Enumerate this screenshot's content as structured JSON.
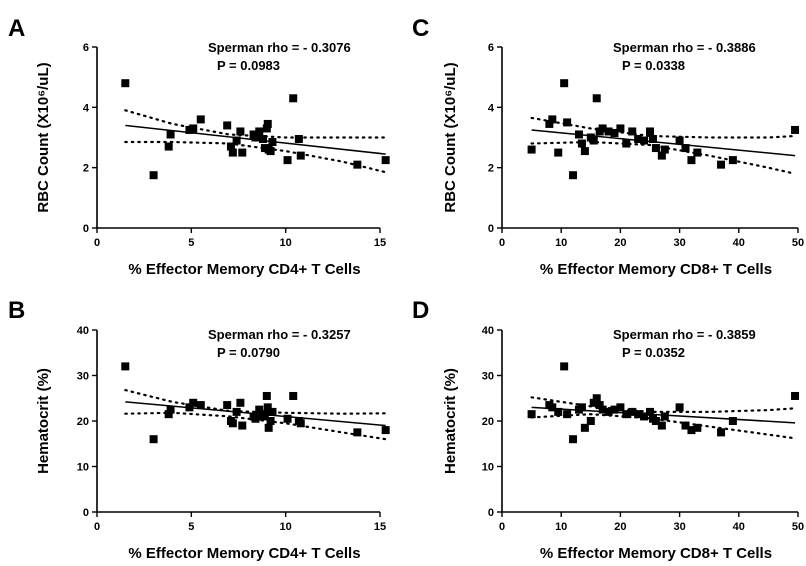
{
  "chart_data": [
    {
      "panel": "A",
      "type": "scatter",
      "xlabel": "% Effector Memory CD4+ T Cells",
      "ylabel": "RBC Count (X10⁶/uL)",
      "xlim": [
        0,
        15
      ],
      "ylim": [
        0,
        6
      ],
      "xticks": [
        0,
        5,
        10,
        15
      ],
      "yticks": [
        0,
        2,
        4,
        6
      ],
      "stats": [
        "Sperman rho = - 0.3076",
        "P = 0.0983"
      ],
      "points": [
        [
          1.5,
          4.8
        ],
        [
          3.0,
          1.75
        ],
        [
          3.8,
          2.7
        ],
        [
          3.9,
          3.1
        ],
        [
          4.9,
          3.25
        ],
        [
          5.1,
          3.3
        ],
        [
          5.5,
          3.6
        ],
        [
          6.9,
          3.4
        ],
        [
          7.1,
          2.7
        ],
        [
          7.2,
          2.5
        ],
        [
          7.4,
          2.9
        ],
        [
          7.6,
          3.2
        ],
        [
          7.7,
          2.5
        ],
        [
          8.3,
          3.1
        ],
        [
          8.4,
          3.0
        ],
        [
          8.6,
          3.2
        ],
        [
          8.8,
          2.95
        ],
        [
          8.9,
          2.65
        ],
        [
          9.0,
          3.3
        ],
        [
          9.05,
          3.45
        ],
        [
          9.1,
          2.6
        ],
        [
          9.2,
          2.55
        ],
        [
          9.3,
          2.85
        ],
        [
          10.1,
          2.25
        ],
        [
          10.4,
          4.3
        ],
        [
          10.7,
          2.95
        ],
        [
          10.8,
          2.4
        ],
        [
          13.8,
          2.1
        ],
        [
          15.3,
          2.25
        ]
      ],
      "fit": {
        "x": [
          1.5,
          15.3
        ],
        "y": [
          3.4,
          2.45
        ]
      },
      "ci_upper": {
        "x": [
          1.5,
          4,
          7,
          10,
          13,
          15.3
        ],
        "y": [
          3.9,
          3.45,
          3.1,
          3.0,
          3.0,
          3.0
        ]
      },
      "ci_lower": {
        "x": [
          1.5,
          4,
          7,
          10,
          13,
          15.3
        ],
        "y": [
          2.85,
          2.85,
          2.8,
          2.55,
          2.2,
          1.85
        ]
      }
    },
    {
      "panel": "C",
      "type": "scatter",
      "xlabel": "% Effector Memory CD8+ T Cells",
      "ylabel": "RBC Count (X10⁶/uL)",
      "xlim": [
        0,
        50
      ],
      "ylim": [
        0,
        6
      ],
      "xticks": [
        0,
        10,
        20,
        30,
        40,
        50
      ],
      "yticks": [
        0,
        2,
        4,
        6
      ],
      "stats": [
        "Sperman rho = - 0.3886",
        "P = 0.0338"
      ],
      "points": [
        [
          5,
          2.6
        ],
        [
          8,
          3.45
        ],
        [
          8.5,
          3.6
        ],
        [
          9.5,
          2.5
        ],
        [
          10.5,
          4.8
        ],
        [
          11,
          3.5
        ],
        [
          12,
          1.75
        ],
        [
          13,
          3.1
        ],
        [
          13.5,
          2.8
        ],
        [
          14,
          2.55
        ],
        [
          15,
          3.0
        ],
        [
          15.5,
          2.9
        ],
        [
          16,
          4.3
        ],
        [
          16.5,
          3.2
        ],
        [
          17,
          3.3
        ],
        [
          18,
          3.2
        ],
        [
          19,
          3.15
        ],
        [
          20,
          3.3
        ],
        [
          21,
          2.8
        ],
        [
          22,
          3.2
        ],
        [
          23,
          2.95
        ],
        [
          24,
          2.9
        ],
        [
          25,
          3.2
        ],
        [
          25.5,
          2.95
        ],
        [
          26,
          2.65
        ],
        [
          27,
          2.4
        ],
        [
          27.5,
          2.6
        ],
        [
          30,
          2.9
        ],
        [
          31,
          2.65
        ],
        [
          32,
          2.25
        ],
        [
          33,
          2.5
        ],
        [
          37,
          2.1
        ],
        [
          39,
          2.25
        ],
        [
          49.5,
          3.25
        ]
      ],
      "fit": {
        "x": [
          5,
          49.5
        ],
        "y": [
          3.25,
          2.4
        ]
      },
      "ci_upper": {
        "x": [
          5,
          15,
          25,
          35,
          45,
          49.5
        ],
        "y": [
          3.65,
          3.3,
          3.05,
          3.0,
          3.0,
          3.05
        ]
      },
      "ci_lower": {
        "x": [
          5,
          15,
          25,
          35,
          45,
          49.5
        ],
        "y": [
          2.8,
          2.85,
          2.75,
          2.4,
          2.0,
          1.8
        ]
      }
    },
    {
      "panel": "B",
      "type": "scatter",
      "xlabel": "% Effector Memory CD4+ T Cells",
      "ylabel": "Hematocrit (%)",
      "xlim": [
        0,
        15
      ],
      "ylim": [
        0,
        40
      ],
      "xticks": [
        0,
        5,
        10,
        15
      ],
      "yticks": [
        0,
        10,
        20,
        30,
        40
      ],
      "stats": [
        "Sperman rho = - 0.3257",
        "P = 0.0790"
      ],
      "points": [
        [
          1.5,
          32
        ],
        [
          3.0,
          16
        ],
        [
          3.8,
          21.5
        ],
        [
          3.9,
          22.5
        ],
        [
          4.9,
          23
        ],
        [
          5.1,
          24
        ],
        [
          5.5,
          23.5
        ],
        [
          6.9,
          23.5
        ],
        [
          7.1,
          20
        ],
        [
          7.2,
          19.5
        ],
        [
          7.4,
          22
        ],
        [
          7.6,
          24
        ],
        [
          7.7,
          19
        ],
        [
          8.3,
          21
        ],
        [
          8.4,
          20.5
        ],
        [
          8.6,
          22.5
        ],
        [
          8.8,
          21
        ],
        [
          8.9,
          21.5
        ],
        [
          9.0,
          25.5
        ],
        [
          9.05,
          23
        ],
        [
          9.1,
          18.5
        ],
        [
          9.2,
          20
        ],
        [
          9.3,
          22
        ],
        [
          10.1,
          20.5
        ],
        [
          10.4,
          25.5
        ],
        [
          10.7,
          20
        ],
        [
          10.8,
          19.5
        ],
        [
          13.8,
          17.5
        ],
        [
          15.3,
          18
        ]
      ],
      "fit": {
        "x": [
          1.5,
          15.3
        ],
        "y": [
          24.2,
          19.0
        ]
      },
      "ci_upper": {
        "x": [
          1.5,
          4,
          7,
          10,
          13,
          15.3
        ],
        "y": [
          26.8,
          24.2,
          22.2,
          21.8,
          21.6,
          21.7
        ]
      },
      "ci_lower": {
        "x": [
          1.5,
          4,
          7,
          10,
          13,
          15.3
        ],
        "y": [
          21.6,
          21.8,
          21.0,
          19.5,
          17.5,
          16.0
        ]
      }
    },
    {
      "panel": "D",
      "type": "scatter",
      "xlabel": "% Effector Memory CD8+ T Cells",
      "ylabel": "Hematocrit (%)",
      "xlim": [
        0,
        50
      ],
      "ylim": [
        0,
        40
      ],
      "xticks": [
        0,
        10,
        20,
        30,
        40,
        50
      ],
      "yticks": [
        0,
        10,
        20,
        30,
        40
      ],
      "stats": [
        "Sperman rho = - 0.3859",
        "P = 0.0352"
      ],
      "points": [
        [
          5,
          21.5
        ],
        [
          8,
          23.5
        ],
        [
          8.5,
          23
        ],
        [
          9.5,
          22
        ],
        [
          10.5,
          32
        ],
        [
          11,
          21.5
        ],
        [
          12,
          16
        ],
        [
          13,
          22.5
        ],
        [
          13.5,
          23
        ],
        [
          14,
          18.5
        ],
        [
          15,
          20
        ],
        [
          15.5,
          24
        ],
        [
          16,
          25
        ],
        [
          16.5,
          23.5
        ],
        [
          17,
          22.5
        ],
        [
          18,
          22
        ],
        [
          19,
          22.5
        ],
        [
          20,
          23
        ],
        [
          21,
          21.5
        ],
        [
          22,
          22
        ],
        [
          23,
          21.5
        ],
        [
          24,
          21
        ],
        [
          25,
          22
        ],
        [
          25.5,
          20.5
        ],
        [
          26,
          20
        ],
        [
          27,
          19
        ],
        [
          27.5,
          21
        ],
        [
          30,
          23
        ],
        [
          31,
          19
        ],
        [
          32,
          18
        ],
        [
          33,
          18.5
        ],
        [
          37,
          17.5
        ],
        [
          39,
          20
        ],
        [
          49.5,
          25.5
        ]
      ],
      "fit": {
        "x": [
          5,
          49.5
        ],
        "y": [
          23.0,
          19.6
        ]
      },
      "ci_upper": {
        "x": [
          5,
          15,
          25,
          35,
          45,
          49.5
        ],
        "y": [
          25.2,
          23.2,
          22.0,
          22.0,
          22.4,
          22.8
        ]
      },
      "ci_lower": {
        "x": [
          5,
          15,
          25,
          35,
          45,
          49.5
        ],
        "y": [
          20.8,
          21.5,
          20.6,
          18.8,
          17.0,
          16.2
        ]
      }
    }
  ]
}
